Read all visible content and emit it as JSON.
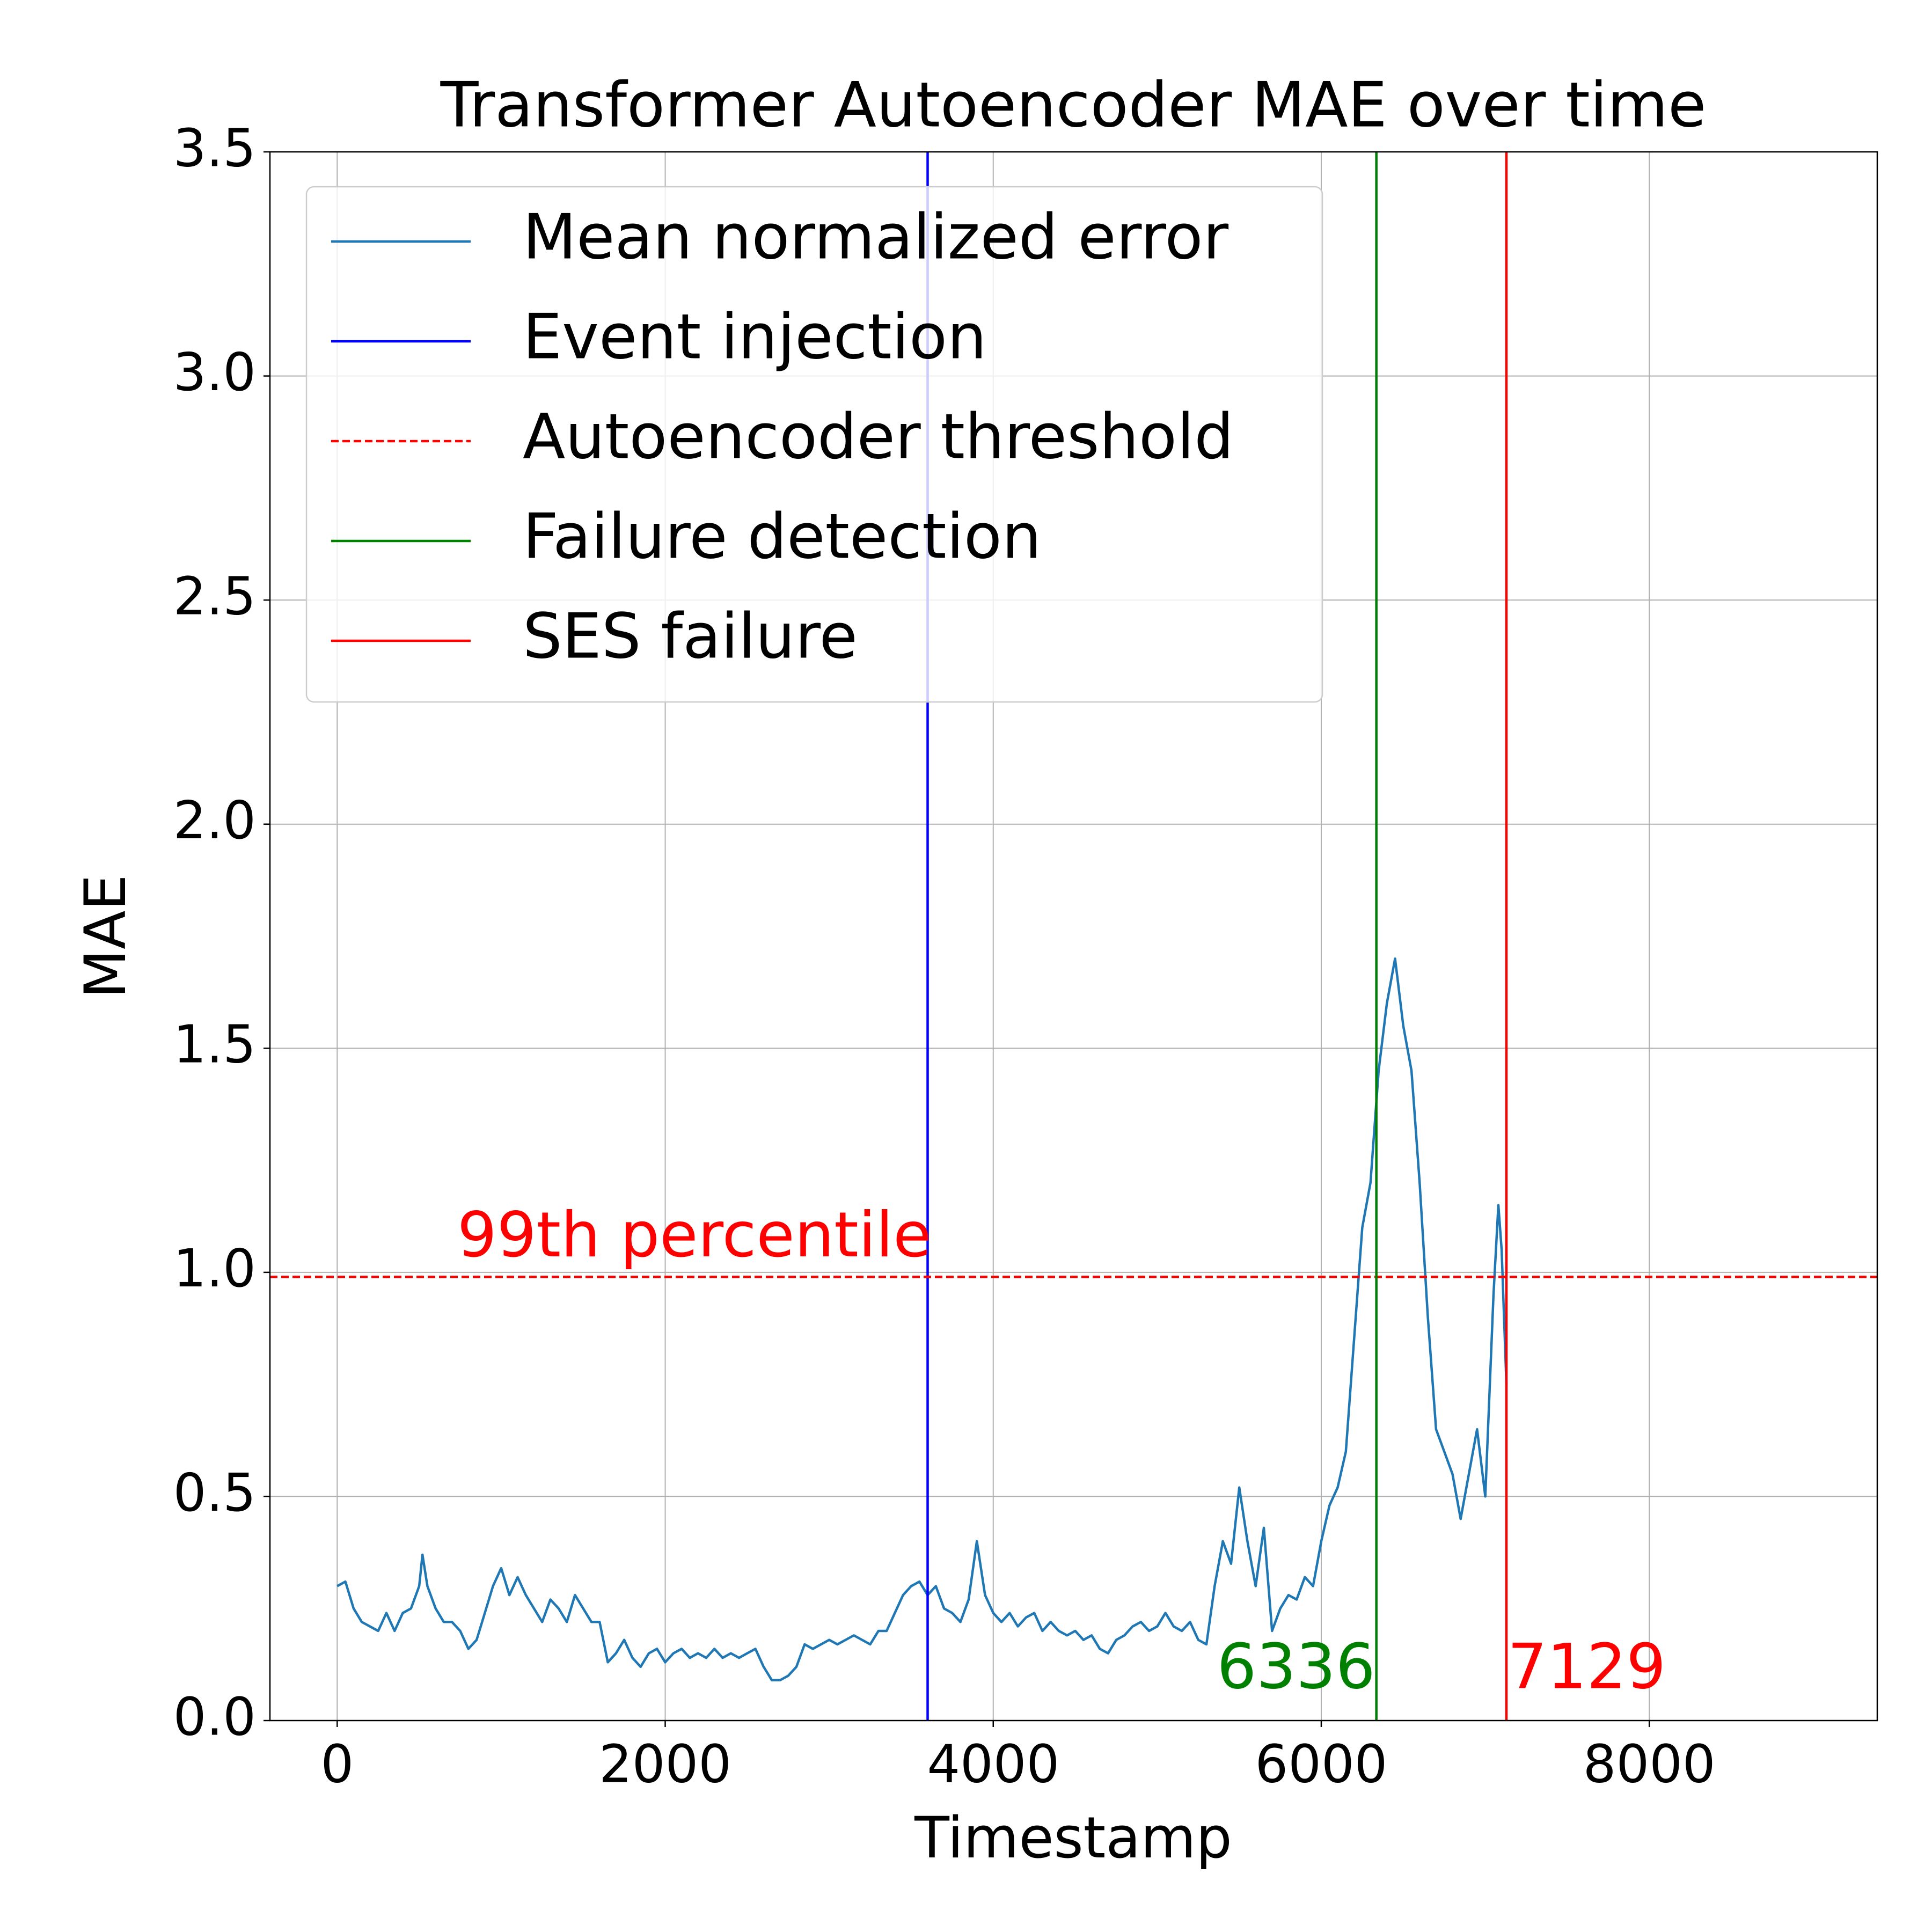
{
  "chart_data": {
    "type": "line",
    "title": "Transformer Autoencoder MAE over time",
    "xlabel": "Timestamp",
    "ylabel": "MAE",
    "xlim": [
      -410,
      9390
    ],
    "xticks": [
      0,
      2000,
      4000,
      6000,
      8000
    ],
    "ylim": [
      0,
      3.5
    ],
    "yticks": [
      {
        "value": 0,
        "label": "0.0"
      },
      0.5,
      {
        "value": 1,
        "label": "1.0"
      },
      1.5,
      {
        "value": 2,
        "label": "2.0"
      },
      2.5,
      {
        "value": 3,
        "label": "3.0"
      },
      3.5
    ],
    "grid": true,
    "legend": "upper left",
    "x": [
      0,
      50,
      100,
      150,
      200,
      250,
      300,
      350,
      400,
      450,
      500,
      520,
      550,
      600,
      650,
      700,
      750,
      800,
      850,
      900,
      950,
      1000,
      1050,
      1100,
      1150,
      1200,
      1250,
      1300,
      1350,
      1400,
      1450,
      1500,
      1550,
      1600,
      1650,
      1700,
      1750,
      1800,
      1850,
      1900,
      1950,
      2000,
      2050,
      2100,
      2150,
      2200,
      2250,
      2300,
      2350,
      2400,
      2450,
      2500,
      2550,
      2600,
      2650,
      2700,
      2750,
      2800,
      2850,
      2900,
      2950,
      3000,
      3050,
      3100,
      3150,
      3200,
      3250,
      3300,
      3350,
      3400,
      3450,
      3500,
      3550,
      3600,
      3650,
      3700,
      3750,
      3800,
      3850,
      3900,
      3950,
      4000,
      4050,
      4100,
      4150,
      4200,
      4250,
      4300,
      4350,
      4400,
      4450,
      4500,
      4550,
      4600,
      4650,
      4700,
      4750,
      4800,
      4850,
      4900,
      4950,
      5000,
      5050,
      5100,
      5150,
      5200,
      5250,
      5300,
      5350,
      5400,
      5450,
      5500,
      5550,
      5600,
      5650,
      5700,
      5750,
      5800,
      5850,
      5900,
      5950,
      6000,
      6050,
      6100,
      6150,
      6200,
      6250,
      6300,
      6350,
      6400,
      6450,
      6500,
      6550,
      6600,
      6650,
      6700,
      6750,
      6800,
      6850,
      6900,
      6950,
      7000,
      7050,
      7080,
      7100,
      7129
    ],
    "series": [
      {
        "name": "Mean normalized error",
        "color": "#1f77b4",
        "values": [
          0.3,
          0.31,
          0.25,
          0.22,
          0.21,
          0.2,
          0.24,
          0.2,
          0.24,
          0.25,
          0.3,
          0.37,
          0.3,
          0.25,
          0.22,
          0.22,
          0.2,
          0.16,
          0.18,
          0.24,
          0.3,
          0.34,
          0.28,
          0.32,
          0.28,
          0.25,
          0.22,
          0.27,
          0.25,
          0.22,
          0.28,
          0.25,
          0.22,
          0.22,
          0.13,
          0.15,
          0.18,
          0.14,
          0.12,
          0.15,
          0.16,
          0.13,
          0.15,
          0.16,
          0.14,
          0.15,
          0.14,
          0.16,
          0.14,
          0.15,
          0.14,
          0.15,
          0.16,
          0.12,
          0.09,
          0.09,
          0.1,
          0.12,
          0.17,
          0.16,
          0.17,
          0.18,
          0.17,
          0.18,
          0.19,
          0.18,
          0.17,
          0.2,
          0.2,
          0.24,
          0.28,
          0.3,
          0.31,
          0.28,
          0.3,
          0.25,
          0.24,
          0.22,
          0.27,
          0.4,
          0.28,
          0.24,
          0.22,
          0.24,
          0.21,
          0.23,
          0.24,
          0.2,
          0.22,
          0.2,
          0.19,
          0.2,
          0.18,
          0.19,
          0.16,
          0.15,
          0.18,
          0.19,
          0.21,
          0.22,
          0.2,
          0.21,
          0.24,
          0.21,
          0.2,
          0.22,
          0.18,
          0.17,
          0.3,
          0.4,
          0.35,
          0.52,
          0.4,
          0.3,
          0.43,
          0.2,
          0.25,
          0.28,
          0.27,
          0.32,
          0.3,
          0.4,
          0.48,
          0.52,
          0.6,
          0.85,
          1.1,
          1.2,
          1.45,
          1.6,
          1.7,
          1.55,
          1.45,
          1.2,
          0.9,
          0.65,
          0.6,
          0.55,
          0.45,
          0.55,
          0.65,
          0.5,
          0.95,
          1.15,
          1.05,
          0.75
        ]
      }
    ],
    "ref_lines": [
      {
        "name": "Event injection",
        "x": 3600,
        "color": "#0000ff"
      },
      {
        "name": "Autoencoder threshold",
        "y": 0.99,
        "color": "#ff0000",
        "dashed": true,
        "label": "99th percentile"
      },
      {
        "name": "Failure detection",
        "x": 6336,
        "color": "#008000",
        "label": "6336"
      },
      {
        "name": "SES failure",
        "x": 7129,
        "color": "#ff0000",
        "label": "7129"
      }
    ]
  }
}
